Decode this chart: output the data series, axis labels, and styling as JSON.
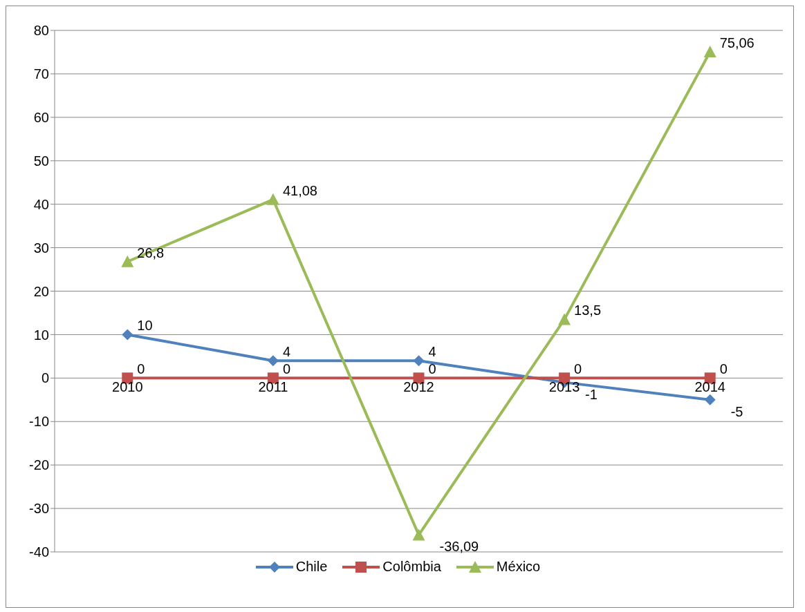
{
  "chart_data": {
    "type": "line",
    "categories": [
      "2010",
      "2011",
      "2012",
      "2013",
      "2014"
    ],
    "series": [
      {
        "name": "Chile",
        "color": "#4f81bd",
        "marker": "diamond",
        "values": [
          10,
          4,
          4,
          -1,
          -5
        ],
        "value_labels": [
          "10",
          "4",
          "4",
          "-1",
          "-5"
        ]
      },
      {
        "name": "Colômbia",
        "color": "#c0504d",
        "marker": "square",
        "values": [
          0,
          0,
          0,
          0,
          0
        ],
        "value_labels": [
          "0",
          "0",
          "0",
          "0",
          "0"
        ]
      },
      {
        "name": "México",
        "color": "#9bbb59",
        "marker": "triangle",
        "values": [
          26.8,
          41.08,
          -36.09,
          13.5,
          75.06
        ],
        "value_labels": [
          "26,8",
          "41,08",
          "-36,09",
          "13,5",
          "75,06"
        ]
      }
    ],
    "ylim": [
      -40,
      80
    ],
    "yticks": [
      -40,
      -30,
      -20,
      -10,
      0,
      10,
      20,
      30,
      40,
      50,
      60,
      70,
      80
    ],
    "grid": "y",
    "legend": "bottom"
  }
}
